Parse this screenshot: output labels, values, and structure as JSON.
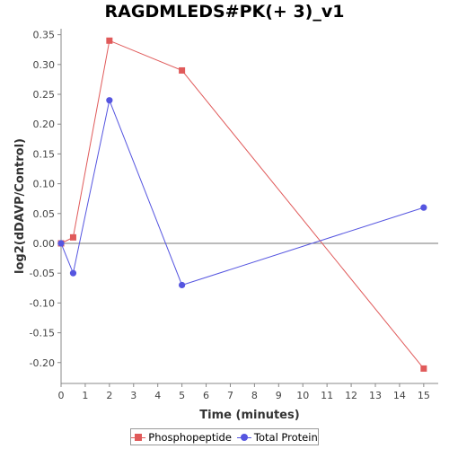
{
  "chart_data": {
    "type": "line",
    "title": "RAGDMLEDS#PK(+ 3)_v1",
    "xlabel": "Time (minutes)",
    "ylabel": "log2(dDAVP/Control)",
    "xlim": [
      0,
      15.6
    ],
    "ylim": [
      -0.235,
      0.36
    ],
    "x_ticks": [
      "0",
      "1",
      "2",
      "3",
      "4",
      "5",
      "6",
      "7",
      "8",
      "9",
      "10",
      "11",
      "12",
      "13",
      "14",
      "15"
    ],
    "y_ticks": [
      "0.35",
      "0.30",
      "0.25",
      "0.20",
      "0.15",
      "0.10",
      "0.05",
      "0.00",
      "-0.05",
      "-0.10",
      "-0.15",
      "-0.20"
    ],
    "zero_line": true,
    "series": [
      {
        "name": "Phosphopeptide",
        "color": "#e05a5a",
        "marker": "square",
        "x": [
          0,
          0.5,
          2,
          5,
          15
        ],
        "y": [
          0.0,
          0.01,
          0.34,
          0.29,
          -0.21
        ]
      },
      {
        "name": "Total Protein",
        "color": "#5555e0",
        "marker": "circle",
        "x": [
          0,
          0.5,
          2,
          5,
          15
        ],
        "y": [
          0.0,
          -0.05,
          0.24,
          -0.07,
          0.06
        ]
      }
    ],
    "legend": "bottom"
  }
}
